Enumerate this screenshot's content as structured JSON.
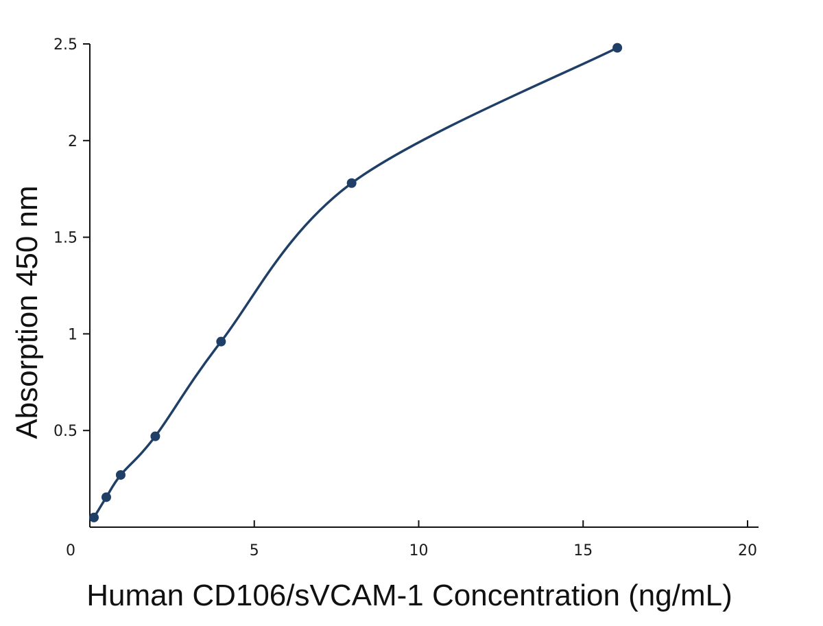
{
  "chart_data": {
    "type": "scatter",
    "title": "",
    "xlabel": "Human CD106/sVCAM-1 Concentration (ng/mL)",
    "ylabel": "Absorption 450 nm",
    "xlim": [
      0,
      20
    ],
    "ylim": [
      0,
      2.5
    ],
    "x_ticks": [
      "0",
      "5",
      "10",
      "15",
      "20"
    ],
    "y_ticks": [
      "0.5",
      "1",
      "1.5",
      "2",
      "2.5"
    ],
    "grid": false,
    "legend": "none",
    "color": "#1f3f66",
    "series": [
      {
        "x": [
          0.125,
          0.5,
          0.938,
          1.99,
          3.99,
          7.96,
          16.04
        ],
        "y": [
          0.05,
          0.155,
          0.27,
          0.47,
          0.96,
          1.78,
          2.48
        ],
        "fit_curve": true
      }
    ]
  }
}
